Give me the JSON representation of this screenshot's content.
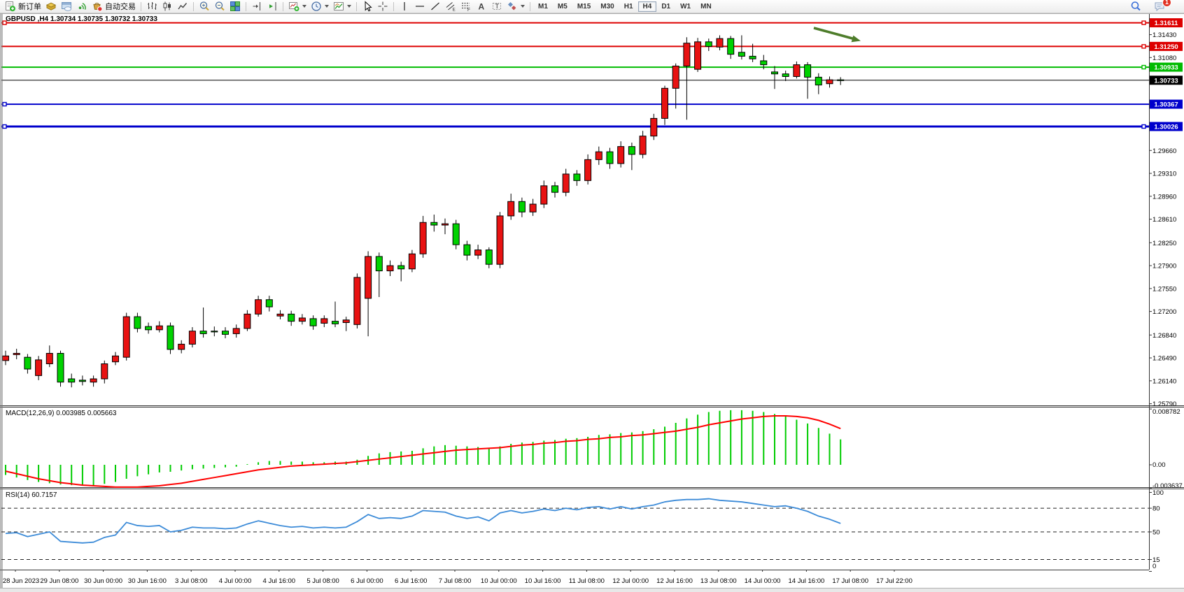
{
  "toolbar": {
    "groups": [
      {
        "items": [
          {
            "icon": "new-order-icon",
            "label": "新订单"
          },
          {
            "icon": "gold-box-icon"
          },
          {
            "icon": "cloud-window-icon"
          },
          {
            "icon": "signal-icon"
          },
          {
            "icon": "autotrading-icon",
            "label": "自动交易"
          }
        ]
      },
      {
        "items": [
          {
            "icon": "bar-chart-icon"
          },
          {
            "icon": "candlestick-chart-icon"
          },
          {
            "icon": "line-chart-icon"
          }
        ]
      },
      {
        "items": [
          {
            "icon": "zoom-in-icon"
          },
          {
            "icon": "zoom-out-icon"
          },
          {
            "icon": "tile-windows-icon"
          }
        ]
      },
      {
        "items": [
          {
            "icon": "chart-shift-icon"
          },
          {
            "icon": "auto-scroll-icon"
          }
        ]
      },
      {
        "items": [
          {
            "icon": "indicators-icon",
            "dropdown": true
          },
          {
            "icon": "periods-clock-icon",
            "dropdown": true
          },
          {
            "icon": "template-icon",
            "dropdown": true
          }
        ]
      },
      {
        "items": [
          {
            "icon": "cursor-icon"
          },
          {
            "icon": "crosshair-icon"
          }
        ]
      },
      {
        "items": [
          {
            "icon": "vertical-line-icon"
          },
          {
            "icon": "horizontal-line-icon"
          },
          {
            "icon": "trendline-icon"
          },
          {
            "icon": "channel-icon"
          },
          {
            "icon": "fibonacci-icon"
          },
          {
            "icon": "text-icon"
          },
          {
            "icon": "text-label-icon"
          },
          {
            "icon": "shapes-icon",
            "dropdown": true
          }
        ]
      }
    ],
    "timeframes": [
      {
        "label": "M1"
      },
      {
        "label": "M5"
      },
      {
        "label": "M15"
      },
      {
        "label": "M30"
      },
      {
        "label": "H1"
      },
      {
        "label": "H4",
        "active": true
      },
      {
        "label": "D1"
      },
      {
        "label": "W1"
      },
      {
        "label": "MN"
      }
    ],
    "right": [
      {
        "icon": "search-icon"
      },
      {
        "icon": "chat-icon",
        "badge": "1"
      }
    ]
  },
  "chart": {
    "symbol_period": "GBPUSD ,H4",
    "quotes": "1.30734 1.30735 1.30732 1.30733",
    "colors": {
      "bull": "#e81212",
      "bear": "#00d200",
      "wick": "#000000",
      "macd_hist": "#00cc00",
      "macd_signal": "#ff0000",
      "rsi_line": "#3c8bd8",
      "arrow": "#4e7d2b"
    },
    "price_lines": [
      {
        "label": "1.31611",
        "value": 1.31611,
        "color": "#dd0000",
        "width": 2,
        "handles": [
          "left",
          "right"
        ]
      },
      {
        "label": "1.31250",
        "value": 1.3125,
        "color": "#dd0000",
        "width": 2,
        "handles": [
          "right"
        ]
      },
      {
        "label": "1.30933",
        "value": 1.30933,
        "color": "#00bb00",
        "width": 2,
        "handles": [
          "right"
        ]
      },
      {
        "label": "1.30733",
        "value": 1.30733,
        "color": "#000000",
        "width": 1,
        "handles": []
      },
      {
        "label": "1.30367",
        "value": 1.30367,
        "color": "#0000cc",
        "width": 2,
        "handles": [
          "left"
        ]
      },
      {
        "label": "1.30026",
        "value": 1.30026,
        "color": "#0000cc",
        "width": 3,
        "handles": [
          "left",
          "right"
        ]
      }
    ],
    "scale_ticks": [
      {
        "label": "1.31430",
        "value": 1.3143
      },
      {
        "label": "1.31080",
        "value": 1.3108
      },
      {
        "label": "1.29660",
        "value": 1.2966
      },
      {
        "label": "1.29310",
        "value": 1.2931
      },
      {
        "label": "1.28960",
        "value": 1.2896
      },
      {
        "label": "1.28610",
        "value": 1.2861
      },
      {
        "label": "1.28250",
        "value": 1.2825
      },
      {
        "label": "1.27900",
        "value": 1.279
      },
      {
        "label": "1.27550",
        "value": 1.2755
      },
      {
        "label": "1.27200",
        "value": 1.272
      },
      {
        "label": "1.26840",
        "value": 1.2684
      },
      {
        "label": "1.26490",
        "value": 1.2649
      },
      {
        "label": "1.26140",
        "value": 1.2614
      },
      {
        "label": "1.25790",
        "value": 1.2579
      }
    ]
  },
  "chart_data": {
    "type": "candlestick",
    "symbol": "GBPUSD",
    "timeframe": "H4",
    "ohlc": [
      [
        1.2645,
        1.266,
        1.2638,
        1.2652
      ],
      [
        1.2654,
        1.2663,
        1.2647,
        1.2656
      ],
      [
        1.265,
        1.2655,
        1.2625,
        1.2632
      ],
      [
        1.2622,
        1.2652,
        1.2615,
        1.2646
      ],
      [
        1.264,
        1.2668,
        1.2635,
        1.2656
      ],
      [
        1.2656,
        1.266,
        1.2605,
        1.2612
      ],
      [
        1.2617,
        1.2625,
        1.2604,
        1.2612
      ],
      [
        1.2615,
        1.2622,
        1.2607,
        1.2613
      ],
      [
        1.2612,
        1.2622,
        1.2605,
        1.2617
      ],
      [
        1.2617,
        1.2645,
        1.261,
        1.264
      ],
      [
        1.2643,
        1.2658,
        1.2638,
        1.2652
      ],
      [
        1.265,
        1.2718,
        1.2645,
        1.2712
      ],
      [
        1.2712,
        1.2718,
        1.2688,
        1.2694
      ],
      [
        1.2697,
        1.2703,
        1.2686,
        1.2692
      ],
      [
        1.2692,
        1.2705,
        1.2688,
        1.2698
      ],
      [
        1.2698,
        1.2703,
        1.2655,
        1.2662
      ],
      [
        1.2662,
        1.2676,
        1.2656,
        1.267
      ],
      [
        1.267,
        1.2696,
        1.2665,
        1.269
      ],
      [
        1.269,
        1.2726,
        1.268,
        1.2686
      ],
      [
        1.269,
        1.2697,
        1.2682,
        1.2689
      ],
      [
        1.269,
        1.2696,
        1.2679,
        1.2685
      ],
      [
        1.2686,
        1.27,
        1.268,
        1.2694
      ],
      [
        1.2694,
        1.2722,
        1.269,
        1.2716
      ],
      [
        1.2716,
        1.2744,
        1.2712,
        1.2738
      ],
      [
        1.2738,
        1.2744,
        1.272,
        1.2727
      ],
      [
        1.2713,
        1.2722,
        1.2708,
        1.2716
      ],
      [
        1.2716,
        1.2721,
        1.2698,
        1.2705
      ],
      [
        1.2705,
        1.2716,
        1.27,
        1.271
      ],
      [
        1.2709,
        1.2714,
        1.2692,
        1.2698
      ],
      [
        1.2702,
        1.2714,
        1.2696,
        1.2709
      ],
      [
        1.2705,
        1.2735,
        1.2696,
        1.2701
      ],
      [
        1.2703,
        1.2712,
        1.269,
        1.2707
      ],
      [
        1.27,
        1.2778,
        1.2694,
        1.2772
      ],
      [
        1.274,
        1.2812,
        1.2682,
        1.2804
      ],
      [
        1.2804,
        1.281,
        1.2742,
        1.2782
      ],
      [
        1.2782,
        1.2798,
        1.2774,
        1.279
      ],
      [
        1.279,
        1.2796,
        1.2766,
        1.2785
      ],
      [
        1.2785,
        1.2814,
        1.278,
        1.2808
      ],
      [
        1.2808,
        1.2866,
        1.2802,
        1.2856
      ],
      [
        1.2856,
        1.2868,
        1.2842,
        1.2852
      ],
      [
        1.2852,
        1.2862,
        1.2838,
        1.2854
      ],
      [
        1.2854,
        1.286,
        1.2815,
        1.2822
      ],
      [
        1.2822,
        1.2828,
        1.2798,
        1.2806
      ],
      [
        1.2806,
        1.2822,
        1.28,
        1.2814
      ],
      [
        1.2814,
        1.2818,
        1.2786,
        1.2792
      ],
      [
        1.2792,
        1.2872,
        1.2786,
        1.2866
      ],
      [
        1.2866,
        1.29,
        1.286,
        1.2888
      ],
      [
        1.2888,
        1.2894,
        1.2864,
        1.2872
      ],
      [
        1.2872,
        1.2892,
        1.2866,
        1.2884
      ],
      [
        1.2884,
        1.292,
        1.2878,
        1.2912
      ],
      [
        1.2912,
        1.2918,
        1.2894,
        1.2902
      ],
      [
        1.2902,
        1.2938,
        1.2896,
        1.293
      ],
      [
        1.293,
        1.2936,
        1.2912,
        1.292
      ],
      [
        1.292,
        1.296,
        1.2914,
        1.2952
      ],
      [
        1.2952,
        1.2972,
        1.2944,
        1.2964
      ],
      [
        1.2964,
        1.297,
        1.2938,
        1.2946
      ],
      [
        1.2946,
        1.298,
        1.294,
        1.2972
      ],
      [
        1.2972,
        1.2978,
        1.2936,
        1.296
      ],
      [
        1.296,
        1.2996,
        1.2954,
        1.2988
      ],
      [
        1.2988,
        1.3022,
        1.2982,
        1.3015
      ],
      [
        1.3015,
        1.3065,
        1.3005,
        1.3061
      ],
      [
        1.3061,
        1.3099,
        1.303,
        1.3095
      ],
      [
        1.3095,
        1.3139,
        1.3013,
        1.313
      ],
      [
        1.309,
        1.3138,
        1.3086,
        1.3132
      ],
      [
        1.3132,
        1.3137,
        1.3118,
        1.3125
      ],
      [
        1.3124,
        1.3142,
        1.3119,
        1.3137
      ],
      [
        1.3137,
        1.3141,
        1.3106,
        1.3113
      ],
      [
        1.3116,
        1.3142,
        1.3105,
        1.311
      ],
      [
        1.311,
        1.3129,
        1.3101,
        1.3106
      ],
      [
        1.3103,
        1.3112,
        1.309,
        1.3097
      ],
      [
        1.3086,
        1.3095,
        1.306,
        1.3083
      ],
      [
        1.3083,
        1.3088,
        1.3072,
        1.3079
      ],
      [
        1.3079,
        1.3102,
        1.3076,
        1.3097
      ],
      [
        1.3097,
        1.3101,
        1.3045,
        1.3078
      ],
      [
        1.3078,
        1.3084,
        1.3052,
        1.3066
      ],
      [
        1.3068,
        1.3079,
        1.3062,
        1.3074
      ],
      [
        1.3074,
        1.3078,
        1.3066,
        1.30733
      ]
    ],
    "macd": {
      "label": "MACD(12,26,9) 0.003985 0.005663",
      "scale": [
        {
          "label": "0.008782",
          "value": 0.008782
        },
        {
          "label": "0.00",
          "value": 0
        },
        {
          "label": "-0.003637",
          "value": -0.003637
        }
      ],
      "histogram": [
        -0.0016,
        -0.002,
        -0.0024,
        -0.0027,
        -0.0029,
        -0.0031,
        -0.0032,
        -0.0033,
        -0.0032,
        -0.003,
        -0.0027,
        -0.0022,
        -0.0018,
        -0.0015,
        -0.0012,
        -0.0011,
        -0.0009,
        -0.0007,
        -0.0006,
        -0.0005,
        -0.0004,
        -0.0003,
        0.0001,
        0.0004,
        0.0006,
        0.0006,
        0.0005,
        0.0005,
        0.0004,
        0.0004,
        0.0005,
        0.0005,
        0.0008,
        0.0014,
        0.0018,
        0.002,
        0.0021,
        0.0022,
        0.0026,
        0.0029,
        0.0031,
        0.003,
        0.0029,
        0.0028,
        0.0026,
        0.0029,
        0.0033,
        0.0035,
        0.0036,
        0.0038,
        0.0039,
        0.0041,
        0.0042,
        0.0044,
        0.0047,
        0.0048,
        0.005,
        0.0051,
        0.0053,
        0.0056,
        0.006,
        0.0066,
        0.0073,
        0.0079,
        0.0083,
        0.0085,
        0.0086,
        0.0086,
        0.0085,
        0.0083,
        0.008,
        0.0076,
        0.0071,
        0.0065,
        0.0058,
        0.0049,
        0.004
      ],
      "signal": [
        -0.001,
        -0.0014,
        -0.0018,
        -0.0022,
        -0.0025,
        -0.0028,
        -0.003,
        -0.0032,
        -0.0033,
        -0.0034,
        -0.0035,
        -0.0035,
        -0.0035,
        -0.0034,
        -0.0033,
        -0.0031,
        -0.0029,
        -0.0026,
        -0.0023,
        -0.002,
        -0.0017,
        -0.0014,
        -0.0011,
        -0.0008,
        -0.0006,
        -0.0004,
        -0.0002,
        -0.0001,
        0.0,
        0.0001,
        0.0002,
        0.0003,
        0.0005,
        0.0007,
        0.0009,
        0.0011,
        0.0013,
        0.0015,
        0.0017,
        0.0019,
        0.0021,
        0.0023,
        0.0024,
        0.0025,
        0.0026,
        0.0027,
        0.0029,
        0.0031,
        0.0032,
        0.0034,
        0.0035,
        0.0037,
        0.0038,
        0.004,
        0.0041,
        0.0043,
        0.0044,
        0.0046,
        0.0047,
        0.0049,
        0.0051,
        0.0053,
        0.0056,
        0.0059,
        0.0063,
        0.0066,
        0.0069,
        0.0072,
        0.0074,
        0.0076,
        0.0077,
        0.0077,
        0.0076,
        0.0074,
        0.007,
        0.0064,
        0.0057
      ]
    },
    "rsi": {
      "label": "RSI(14) 60.7157",
      "levels": [
        {
          "label": "100",
          "value": 100,
          "dashed": false
        },
        {
          "label": "80",
          "value": 80,
          "dashed": true
        },
        {
          "label": "50",
          "value": 50,
          "dashed": true
        },
        {
          "label": "15",
          "value": 15,
          "dashed": true
        },
        {
          "label": "0",
          "value": 0,
          "dashed": false
        }
      ],
      "values": [
        48,
        49,
        44,
        47,
        50,
        38,
        37,
        36,
        37,
        43,
        46,
        62,
        58,
        57,
        58,
        50,
        52,
        56,
        55,
        55,
        54,
        55,
        60,
        64,
        61,
        58,
        56,
        57,
        55,
        56,
        55,
        56,
        63,
        72,
        67,
        68,
        67,
        70,
        77,
        76,
        75,
        70,
        67,
        69,
        64,
        74,
        77,
        74,
        76,
        79,
        77,
        80,
        78,
        81,
        82,
        79,
        82,
        79,
        82,
        84,
        88,
        90,
        91,
        91,
        92,
        90,
        89,
        88,
        86,
        84,
        82,
        83,
        80,
        76,
        70,
        66,
        60.7157
      ]
    },
    "time_labels": [
      "28 Jun 2023",
      "29 Jun 08:00",
      "30 Jun 00:00",
      "30 Jun 16:00",
      "3 Jul 08:00",
      "4 Jul 00:00",
      "4 Jul 16:00",
      "5 Jul 08:00",
      "6 Jul 00:00",
      "6 Jul 16:00",
      "7 Jul 08:00",
      "10 Jul 00:00",
      "10 Jul 16:00",
      "11 Jul 08:00",
      "12 Jul 00:00",
      "12 Jul 16:00",
      "13 Jul 08:00",
      "14 Jul 00:00",
      "14 Jul 16:00",
      "17 Jul 08:00",
      "17 Jul 22:00"
    ]
  }
}
